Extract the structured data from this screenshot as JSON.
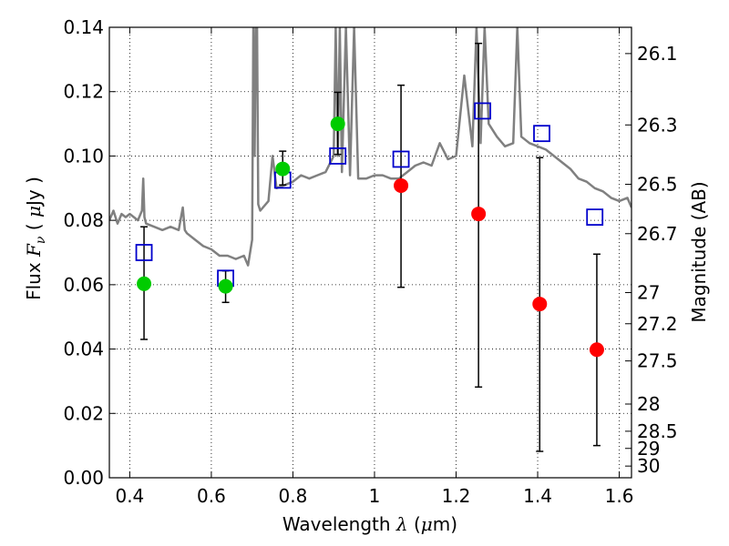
{
  "chart_data": {
    "type": "scatter",
    "title": "",
    "xlabel": "Wavelength  λ (μm)",
    "ylabel": "Flux  F_ν  ( μJy )",
    "y2label": "Magnitude (AB)",
    "xlim": [
      0.35,
      1.63
    ],
    "ylim": [
      0.0,
      0.14
    ],
    "grid": true,
    "x_ticks": [
      0.4,
      0.6,
      0.8,
      1,
      1.2,
      1.4,
      1.6
    ],
    "x_tick_labels": [
      "0.4",
      "0.6",
      "0.8",
      "1",
      "1.2",
      "1.4",
      "1.6"
    ],
    "y_ticks": [
      0.0,
      0.02,
      0.04,
      0.06,
      0.08,
      0.1,
      0.12,
      0.14
    ],
    "y_tick_labels": [
      "0.00",
      "0.02",
      "0.04",
      "0.06",
      "0.08",
      "0.10",
      "0.12",
      "0.14"
    ],
    "y2_ticks": [
      26.1,
      26.3,
      26.5,
      26.7,
      27,
      27.2,
      27.5,
      28,
      28.5,
      29,
      30
    ],
    "y2_tick_labels": [
      "26.1",
      "26.3",
      "26.5",
      "26.7",
      "27",
      "27.2",
      "27.5",
      "28",
      "28.5",
      "29",
      "30"
    ],
    "colors": {
      "detection": "#00cc00",
      "upper_limit": "#ff0000",
      "model": "#0000cc",
      "spectrum": "#808080",
      "errorbar": "#000000"
    },
    "series": [
      {
        "kind": "detections",
        "marker": "green-circle",
        "x": [
          0.435,
          0.635,
          0.775,
          0.91
        ],
        "y": [
          0.0603,
          0.0595,
          0.096,
          0.11
        ],
        "yerr_low": [
          0.043,
          0.0545,
          0.091,
          0.1005
        ],
        "yerr_high": [
          0.078,
          0.0643,
          0.1015,
          0.1198
        ]
      },
      {
        "kind": "non-detections",
        "marker": "red-circle",
        "x": [
          1.065,
          1.255,
          1.405,
          1.545
        ],
        "y": [
          0.0908,
          0.082,
          0.054,
          0.0398
        ],
        "yerr_low": [
          0.0592,
          0.0282,
          0.0082,
          0.01
        ],
        "yerr_high": [
          0.122,
          0.135,
          0.0995,
          0.0695
        ]
      },
      {
        "kind": "model-photometry",
        "marker": "blue-open-square",
        "x": [
          0.435,
          0.635,
          0.775,
          0.91,
          1.065,
          1.265,
          1.41,
          1.54
        ],
        "y": [
          0.07,
          0.062,
          0.0925,
          0.1,
          0.099,
          0.114,
          0.107,
          0.081
        ]
      },
      {
        "kind": "template-spectrum",
        "style": "gray-line",
        "x": [
          0.35,
          0.36,
          0.37,
          0.38,
          0.39,
          0.4,
          0.41,
          0.42,
          0.43,
          0.433,
          0.436,
          0.44,
          0.46,
          0.48,
          0.5,
          0.52,
          0.53,
          0.535,
          0.54,
          0.56,
          0.58,
          0.6,
          0.62,
          0.64,
          0.66,
          0.68,
          0.69,
          0.7,
          0.703,
          0.706,
          0.709,
          0.712,
          0.715,
          0.72,
          0.74,
          0.75,
          0.76,
          0.78,
          0.8,
          0.82,
          0.84,
          0.86,
          0.88,
          0.9,
          0.905,
          0.91,
          0.915,
          0.92,
          0.93,
          0.94,
          0.95,
          0.96,
          0.98,
          1.0,
          1.02,
          1.04,
          1.06,
          1.08,
          1.1,
          1.12,
          1.14,
          1.16,
          1.18,
          1.2,
          1.22,
          1.24,
          1.25,
          1.26,
          1.27,
          1.28,
          1.3,
          1.32,
          1.34,
          1.35,
          1.36,
          1.38,
          1.4,
          1.42,
          1.44,
          1.46,
          1.48,
          1.5,
          1.52,
          1.54,
          1.56,
          1.58,
          1.6,
          1.62,
          1.63
        ],
        "y": [
          0.08,
          0.083,
          0.079,
          0.082,
          0.081,
          0.082,
          0.081,
          0.08,
          0.083,
          0.093,
          0.081,
          0.079,
          0.078,
          0.077,
          0.078,
          0.077,
          0.084,
          0.077,
          0.076,
          0.074,
          0.072,
          0.071,
          0.069,
          0.069,
          0.068,
          0.069,
          0.066,
          0.074,
          0.14,
          0.1,
          0.14,
          0.14,
          0.085,
          0.083,
          0.086,
          0.1,
          0.09,
          0.091,
          0.092,
          0.094,
          0.093,
          0.094,
          0.095,
          0.1,
          0.14,
          0.1,
          0.14,
          0.095,
          0.14,
          0.094,
          0.14,
          0.093,
          0.093,
          0.094,
          0.094,
          0.093,
          0.093,
          0.095,
          0.097,
          0.098,
          0.097,
          0.104,
          0.099,
          0.1,
          0.125,
          0.103,
          0.14,
          0.104,
          0.14,
          0.11,
          0.106,
          0.103,
          0.104,
          0.14,
          0.106,
          0.104,
          0.103,
          0.102,
          0.1,
          0.098,
          0.096,
          0.093,
          0.092,
          0.09,
          0.089,
          0.087,
          0.086,
          0.087,
          0.084
        ]
      }
    ]
  }
}
